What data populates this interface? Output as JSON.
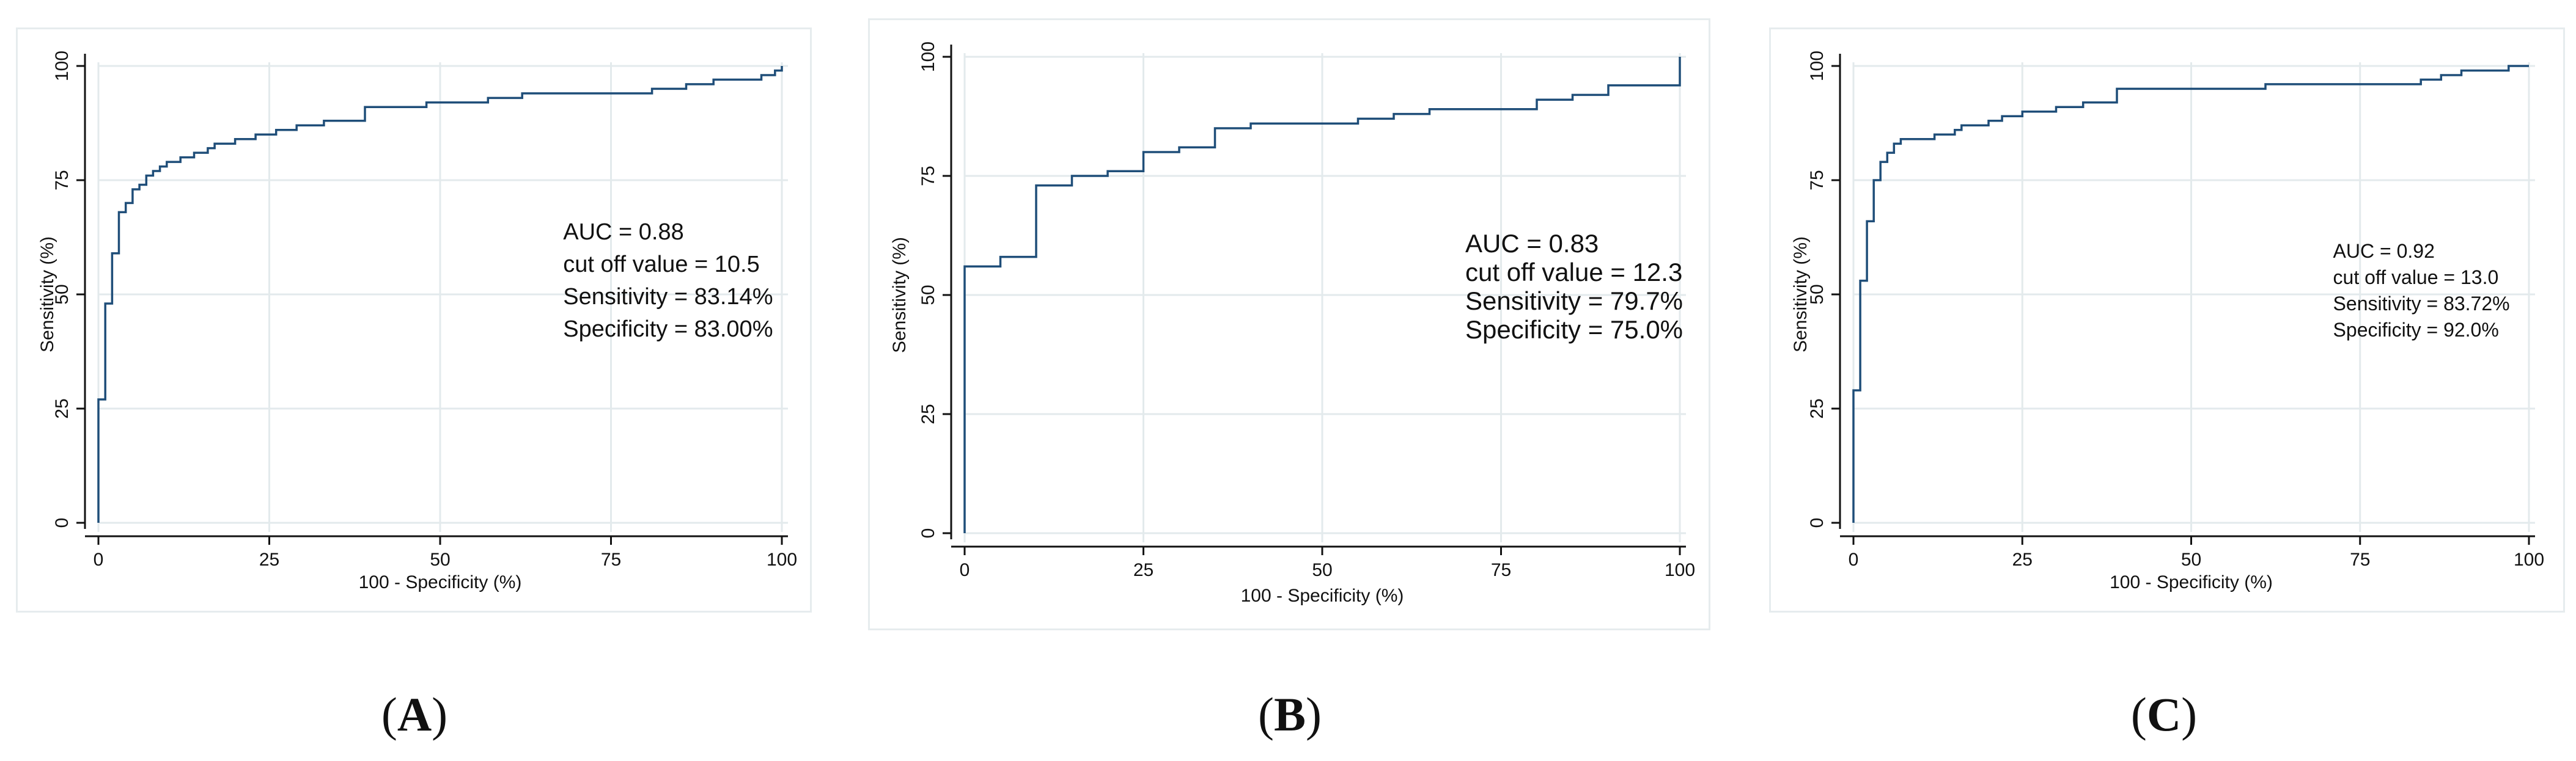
{
  "chart_data": [
    {
      "type": "line",
      "panel_label": "A",
      "xlabel": "100 - Specificity (%)",
      "ylabel": "Sensitivity (%)",
      "xlim": [
        0,
        100
      ],
      "ylim": [
        0,
        100
      ],
      "xticks": [
        0,
        25,
        50,
        75,
        100
      ],
      "yticks": [
        0,
        25,
        50,
        75,
        100
      ],
      "grid": true,
      "annotation": [
        "AUC = 0.88",
        "cut off value = 10.5",
        "Sensitivity = 83.14%",
        "Specificity = 83.00%"
      ],
      "annotation_pos": [
        68,
        62
      ],
      "steps": [
        [
          0,
          0
        ],
        [
          0,
          27
        ],
        [
          1,
          27
        ],
        [
          1,
          48
        ],
        [
          2,
          48
        ],
        [
          2,
          59
        ],
        [
          3,
          59
        ],
        [
          3,
          68
        ],
        [
          4,
          68
        ],
        [
          4,
          70
        ],
        [
          5,
          70
        ],
        [
          5,
          73
        ],
        [
          6,
          73
        ],
        [
          6,
          74
        ],
        [
          7,
          74
        ],
        [
          7,
          76
        ],
        [
          8,
          76
        ],
        [
          8,
          77
        ],
        [
          9,
          77
        ],
        [
          9,
          78
        ],
        [
          10,
          78
        ],
        [
          10,
          79
        ],
        [
          12,
          79
        ],
        [
          12,
          80
        ],
        [
          14,
          80
        ],
        [
          14,
          81
        ],
        [
          16,
          81
        ],
        [
          16,
          82
        ],
        [
          17,
          82
        ],
        [
          17,
          83
        ],
        [
          20,
          83
        ],
        [
          20,
          84
        ],
        [
          23,
          84
        ],
        [
          23,
          85
        ],
        [
          26,
          85
        ],
        [
          26,
          86
        ],
        [
          29,
          86
        ],
        [
          29,
          87
        ],
        [
          33,
          87
        ],
        [
          33,
          88
        ],
        [
          39,
          88
        ],
        [
          39,
          91
        ],
        [
          48,
          91
        ],
        [
          48,
          92
        ],
        [
          57,
          92
        ],
        [
          57,
          93
        ],
        [
          62,
          93
        ],
        [
          62,
          94
        ],
        [
          81,
          94
        ],
        [
          81,
          95
        ],
        [
          86,
          95
        ],
        [
          86,
          96
        ],
        [
          90,
          96
        ],
        [
          90,
          97
        ],
        [
          97,
          97
        ],
        [
          97,
          98
        ],
        [
          99,
          98
        ],
        [
          99,
          99
        ],
        [
          100,
          99
        ],
        [
          100,
          100
        ]
      ]
    },
    {
      "type": "line",
      "panel_label": "B",
      "xlabel": "100 - Specificity (%)",
      "ylabel": "Sensitivity (%)",
      "xlim": [
        0,
        100
      ],
      "ylim": [
        0,
        100
      ],
      "xticks": [
        0,
        25,
        50,
        75,
        100
      ],
      "yticks": [
        0,
        25,
        50,
        75,
        100
      ],
      "grid": true,
      "annotation": [
        "AUC = 0.83",
        "cut off value = 12.3",
        "Sensitivity = 79.7%",
        "Specificity = 75.0%"
      ],
      "annotation_pos": [
        70,
        59
      ],
      "steps": [
        [
          0,
          0
        ],
        [
          0,
          56
        ],
        [
          5,
          56
        ],
        [
          5,
          58
        ],
        [
          10,
          58
        ],
        [
          10,
          73
        ],
        [
          15,
          73
        ],
        [
          15,
          75
        ],
        [
          20,
          75
        ],
        [
          20,
          76
        ],
        [
          25,
          76
        ],
        [
          25,
          80
        ],
        [
          30,
          80
        ],
        [
          30,
          81
        ],
        [
          35,
          81
        ],
        [
          35,
          85
        ],
        [
          40,
          85
        ],
        [
          40,
          86
        ],
        [
          55,
          86
        ],
        [
          55,
          87
        ],
        [
          60,
          87
        ],
        [
          60,
          88
        ],
        [
          65,
          88
        ],
        [
          65,
          89
        ],
        [
          80,
          89
        ],
        [
          80,
          91
        ],
        [
          85,
          91
        ],
        [
          85,
          92
        ],
        [
          90,
          92
        ],
        [
          90,
          94
        ],
        [
          100,
          94
        ],
        [
          100,
          100
        ]
      ]
    },
    {
      "type": "line",
      "panel_label": "C",
      "xlabel": "100 - Specificity (%)",
      "ylabel": "Sensitivity (%)",
      "xlim": [
        0,
        100
      ],
      "ylim": [
        0,
        100
      ],
      "xticks": [
        0,
        25,
        50,
        75,
        100
      ],
      "yticks": [
        0,
        25,
        50,
        75,
        100
      ],
      "grid": true,
      "annotation": [
        "AUC = 0.92",
        "cut off value = 13.0",
        "Sensitivity = 83.72%",
        "Specificity = 92.0%"
      ],
      "annotation_pos": [
        71,
        58
      ],
      "steps": [
        [
          0,
          0
        ],
        [
          0,
          29
        ],
        [
          1,
          29
        ],
        [
          1,
          53
        ],
        [
          2,
          53
        ],
        [
          2,
          66
        ],
        [
          3,
          66
        ],
        [
          3,
          75
        ],
        [
          4,
          75
        ],
        [
          4,
          79
        ],
        [
          5,
          79
        ],
        [
          5,
          81
        ],
        [
          6,
          81
        ],
        [
          6,
          83
        ],
        [
          7,
          83
        ],
        [
          7,
          84
        ],
        [
          12,
          84
        ],
        [
          12,
          85
        ],
        [
          15,
          85
        ],
        [
          15,
          86
        ],
        [
          16,
          86
        ],
        [
          16,
          87
        ],
        [
          20,
          87
        ],
        [
          20,
          88
        ],
        [
          22,
          88
        ],
        [
          22,
          89
        ],
        [
          25,
          89
        ],
        [
          25,
          90
        ],
        [
          30,
          90
        ],
        [
          30,
          91
        ],
        [
          34,
          91
        ],
        [
          34,
          92
        ],
        [
          39,
          92
        ],
        [
          39,
          95
        ],
        [
          61,
          95
        ],
        [
          61,
          96
        ],
        [
          84,
          96
        ],
        [
          84,
          97
        ],
        [
          87,
          97
        ],
        [
          87,
          98
        ],
        [
          90,
          98
        ],
        [
          90,
          99
        ],
        [
          97,
          99
        ],
        [
          97,
          100
        ],
        [
          100,
          100
        ]
      ]
    }
  ],
  "colors": {
    "curve": "#1f4e79",
    "grid": "#e3eaec",
    "axis": "#111111"
  }
}
